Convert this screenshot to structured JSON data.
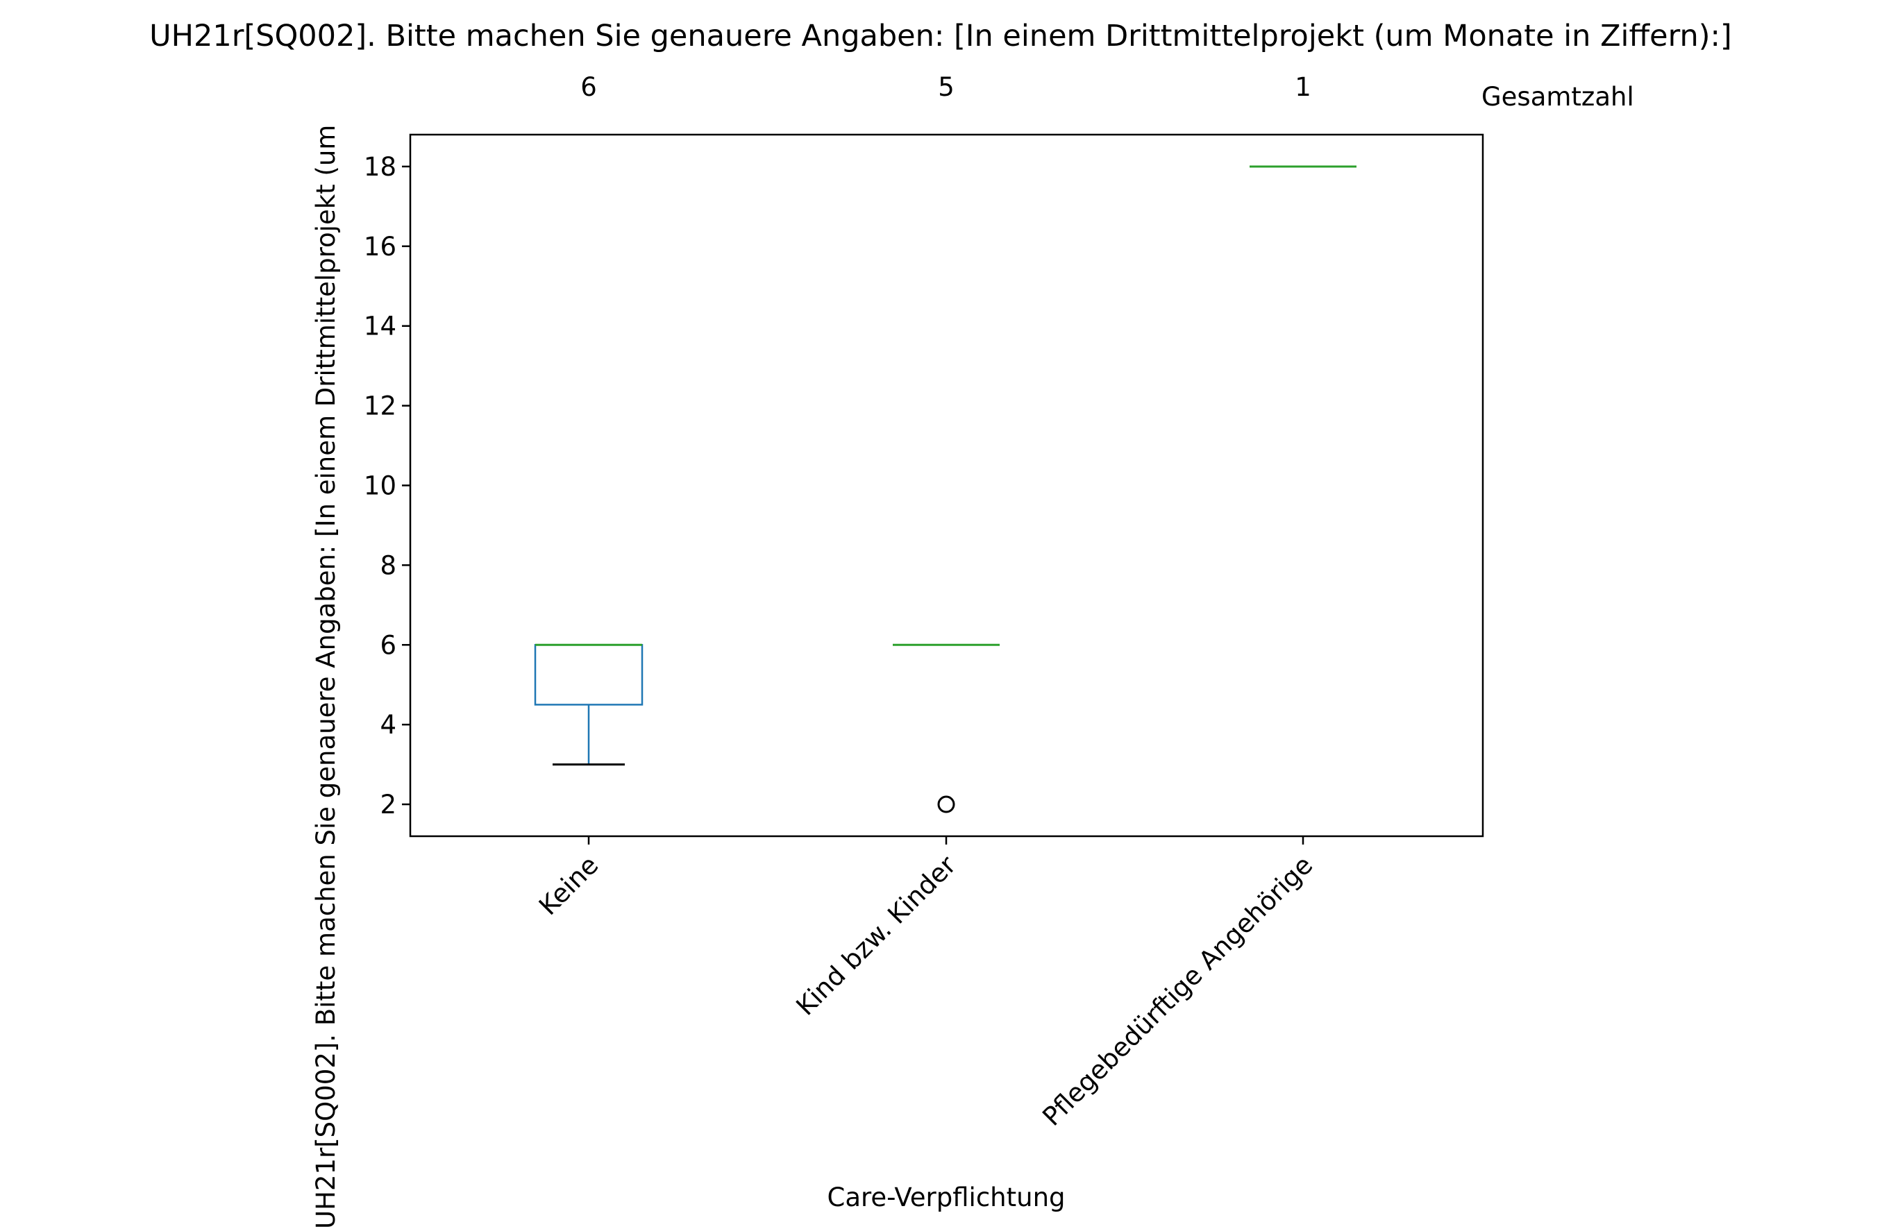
{
  "chart_data": {
    "type": "box",
    "title": "UH21r[SQ002]. Bitte machen Sie genauere Angaben: [In einem Drittmittelprojekt (um Monate in Ziffern):]",
    "xlabel": "Care-Verpflichtung",
    "ylabel": "UH21r[SQ002]. Bitte machen Sie genauere Angaben: [In einem Drittmittelprojekt (um",
    "ylim": [
      1.2,
      18.8
    ],
    "yticks": [
      2,
      4,
      6,
      8,
      10,
      12,
      14,
      16,
      18
    ],
    "grid": false,
    "count_label": "Gesamtzahl",
    "box_color": "#1f77b4",
    "median_color": "#2ca02c",
    "whisker_color": "#1f77b4",
    "cap_color": "#000000",
    "flier_color": "#000000",
    "categories": [
      "Keine",
      "Kind bzw. Kinder",
      "Pflegebedürftige Angehörige"
    ],
    "counts": [
      "6",
      "5",
      "1"
    ],
    "boxes": [
      {
        "category": "Keine",
        "whisker_low": 3,
        "q1": 4.5,
        "median": 6,
        "q3": 6,
        "whisker_high": 6,
        "fliers": []
      },
      {
        "category": "Kind bzw. Kinder",
        "whisker_low": 6,
        "q1": 6,
        "median": 6,
        "q3": 6,
        "whisker_high": 6,
        "fliers": [
          2
        ]
      },
      {
        "category": "Pflegebedürftige Angehörige",
        "whisker_low": 18,
        "q1": 18,
        "median": 18,
        "q3": 18,
        "whisker_high": 18,
        "fliers": []
      }
    ]
  }
}
